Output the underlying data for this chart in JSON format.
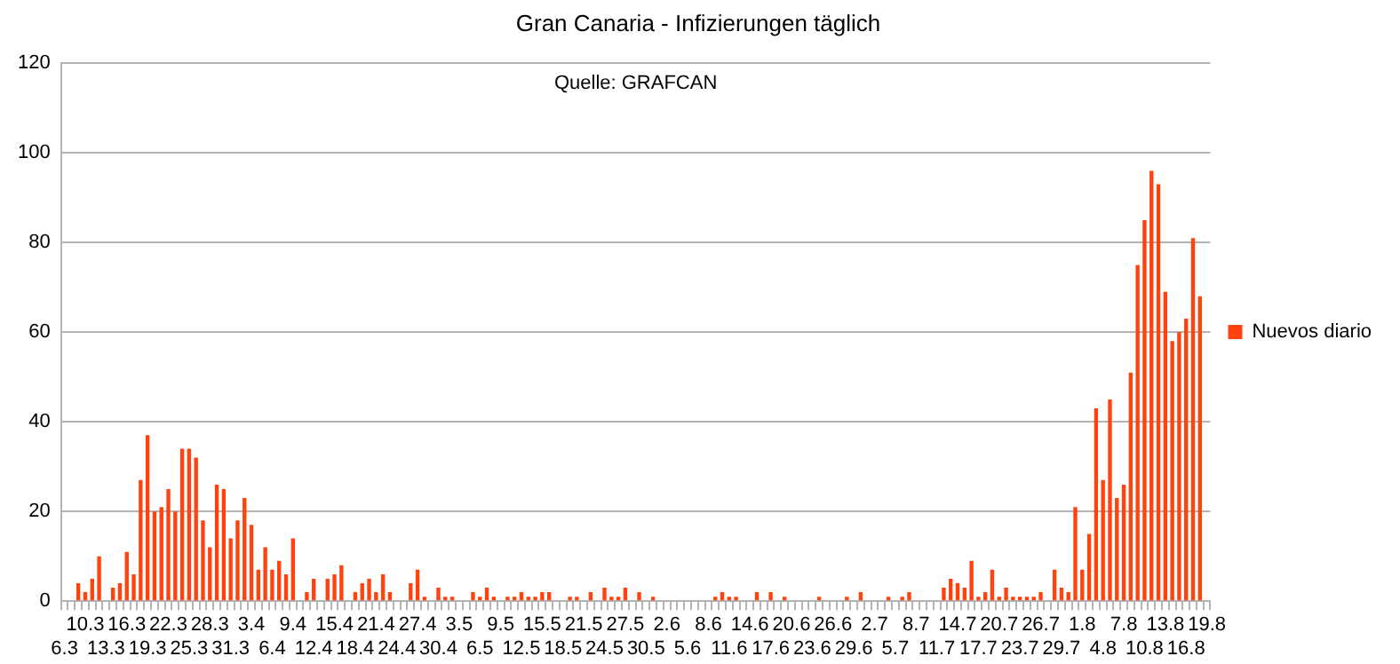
{
  "chart_data": {
    "type": "bar",
    "title": "Gran Canaria - Infizierungen täglich",
    "annotations": [
      "Quelle: GRAFCAN"
    ],
    "categories": [
      "6.3",
      null,
      null,
      "10.3",
      null,
      null,
      "13.3",
      null,
      null,
      "16.3",
      null,
      null,
      "19.3",
      null,
      null,
      "22.3",
      null,
      null,
      "25.3",
      null,
      null,
      "28.3",
      null,
      null,
      "31.3",
      null,
      null,
      "3.4",
      null,
      null,
      "6.4",
      null,
      null,
      "9.4",
      null,
      null,
      "12.4",
      null,
      null,
      "15.4",
      null,
      null,
      "18.4",
      null,
      null,
      "21.4",
      null,
      null,
      "24.4",
      null,
      null,
      "27.4",
      null,
      null,
      "30.4",
      null,
      null,
      "3.5",
      null,
      null,
      "6.5",
      null,
      null,
      "9.5",
      null,
      null,
      "12.5",
      null,
      null,
      "15.5",
      null,
      null,
      "18.5",
      null,
      null,
      "21.5",
      null,
      null,
      "24.5",
      null,
      null,
      "27.5",
      null,
      null,
      "30.5",
      null,
      null,
      "2.6",
      null,
      null,
      "5.6",
      null,
      null,
      "8.6",
      null,
      null,
      "11.6",
      null,
      null,
      "14.6",
      null,
      null,
      "17.6",
      null,
      null,
      "20.6",
      null,
      null,
      "23.6",
      null,
      null,
      "26.6",
      null,
      null,
      "29.6",
      null,
      null,
      "2.7",
      null,
      null,
      "5.7",
      null,
      null,
      "8.7",
      null,
      null,
      "11.7",
      null,
      null,
      "14.7",
      null,
      null,
      "17.7",
      null,
      null,
      "20.7",
      null,
      null,
      "23.7",
      null,
      null,
      "26.7",
      null,
      null,
      "29.7",
      null,
      null,
      "1.8",
      null,
      null,
      "4.8",
      null,
      null,
      "7.8",
      null,
      null,
      "10.8",
      null,
      null,
      "13.8",
      null,
      null,
      "16.8",
      null,
      null,
      "19.8"
    ],
    "series": [
      {
        "name": "Nuevos diario",
        "color": "#ff420e",
        "values": [
          0,
          0,
          4,
          2,
          5,
          10,
          0,
          3,
          4,
          11,
          6,
          27,
          37,
          20,
          21,
          25,
          20,
          34,
          34,
          32,
          18,
          12,
          26,
          25,
          14,
          18,
          23,
          17,
          7,
          12,
          7,
          9,
          6,
          14,
          0,
          2,
          5,
          0,
          5,
          6,
          8,
          0,
          2,
          4,
          5,
          2,
          6,
          2,
          0,
          0,
          4,
          7,
          1,
          0,
          3,
          1,
          1,
          0,
          0,
          2,
          1,
          3,
          1,
          0,
          1,
          1,
          2,
          1,
          1,
          2,
          2,
          0,
          0,
          1,
          1,
          0,
          2,
          0,
          3,
          1,
          1,
          3,
          0,
          2,
          0,
          1,
          0,
          0,
          0,
          0,
          0,
          0,
          0,
          0,
          1,
          2,
          1,
          1,
          0,
          0,
          2,
          0,
          2,
          0,
          1,
          0,
          0,
          0,
          0,
          1,
          0,
          0,
          0,
          1,
          0,
          2,
          0,
          0,
          0,
          1,
          0,
          1,
          2,
          0,
          0,
          0,
          0,
          3,
          5,
          4,
          3,
          9,
          1,
          2,
          7,
          1,
          3,
          1,
          1,
          1,
          1,
          2,
          0,
          7,
          3,
          2,
          21,
          7,
          15,
          43,
          27,
          45,
          23,
          26,
          51,
          75,
          85,
          96,
          93,
          69,
          58,
          60,
          63,
          81,
          68,
          null
        ]
      }
    ],
    "ylim": [
      0,
      120
    ],
    "yticks": [
      0,
      20,
      40,
      60,
      80,
      100,
      120
    ],
    "grid": "y",
    "legend": "right"
  }
}
